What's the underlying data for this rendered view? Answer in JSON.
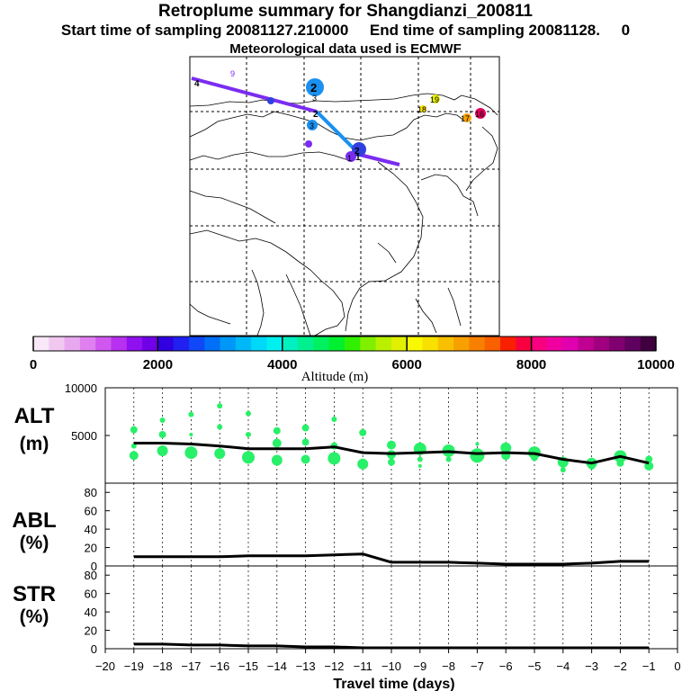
{
  "header": {
    "title": "Retroplume summary for Shangdianzi_200811",
    "subtitle": "Start time of sampling 20081127.210000     End time of sampling 20081128.     0",
    "meteo": "Meteorological data used is ECMWF"
  },
  "colorbar": {
    "title": "Altitude (m)",
    "colors": [
      "#f8e8f8",
      "#f0c8f0",
      "#e8a8f0",
      "#e080f0",
      "#d058f0",
      "#b830f0",
      "#9010f0",
      "#7000e8",
      "#3000e0",
      "#2020f0",
      "#1048f8",
      "#0070f8",
      "#0098f8",
      "#00b8f8",
      "#00d8f8",
      "#00f0f0",
      "#00f0c0",
      "#00f090",
      "#00f060",
      "#00f030",
      "#30f000",
      "#80f000",
      "#b8f000",
      "#e0f000",
      "#f8f800",
      "#f8e000",
      "#f8c000",
      "#f8a000",
      "#f88000",
      "#f86000",
      "#f82000",
      "#f80040",
      "#f80080",
      "#f000a0",
      "#e000b0",
      "#c00090",
      "#a00080",
      "#800070",
      "#600060",
      "#400040"
    ],
    "tick_labels": [
      "0",
      "2000",
      "4000",
      "6000",
      "8000",
      "10000"
    ],
    "tick_values": [
      0,
      2000,
      4000,
      6000,
      8000,
      10000
    ]
  },
  "map": {
    "trajectory_labels": [
      "4",
      "3",
      "2",
      "1"
    ],
    "cluster_labels": [
      "9",
      "18",
      "19",
      "17",
      "16",
      "2",
      "3",
      "2",
      "1"
    ]
  },
  "chart_data": [
    {
      "type": "line",
      "panel": "ALT",
      "ylabel": "ALT\n(m)",
      "ylim": [
        0,
        10000
      ],
      "yticks": [
        5000,
        10000
      ],
      "x": [
        -19,
        -18,
        -17,
        -16,
        -15,
        -14,
        -13,
        -12,
        -11,
        -10,
        -9,
        -8,
        -7,
        -6,
        -5,
        -4,
        -3,
        -2,
        -1
      ],
      "values": [
        4200,
        4200,
        4100,
        3900,
        3600,
        3600,
        3600,
        3800,
        3200,
        3100,
        3200,
        3300,
        3100,
        3200,
        3100,
        2500,
        2100,
        2800,
        2100
      ],
      "scatter_points": [
        {
          "x": -19,
          "y": 5600,
          "r": 4
        },
        {
          "x": -19,
          "y": 3900,
          "r": 3
        },
        {
          "x": -19,
          "y": 2900,
          "r": 5
        },
        {
          "x": -18,
          "y": 6600,
          "r": 3
        },
        {
          "x": -18,
          "y": 5100,
          "r": 4
        },
        {
          "x": -18,
          "y": 3400,
          "r": 6
        },
        {
          "x": -17,
          "y": 7200,
          "r": 3
        },
        {
          "x": -17,
          "y": 5100,
          "r": 2
        },
        {
          "x": -17,
          "y": 3200,
          "r": 7
        },
        {
          "x": -16,
          "y": 8100,
          "r": 3
        },
        {
          "x": -16,
          "y": 5900,
          "r": 3
        },
        {
          "x": -16,
          "y": 3100,
          "r": 6
        },
        {
          "x": -15,
          "y": 7300,
          "r": 3
        },
        {
          "x": -15,
          "y": 5100,
          "r": 3
        },
        {
          "x": -15,
          "y": 2700,
          "r": 7
        },
        {
          "x": -14,
          "y": 5500,
          "r": 4
        },
        {
          "x": -14,
          "y": 4200,
          "r": 5
        },
        {
          "x": -14,
          "y": 2400,
          "r": 6
        },
        {
          "x": -13,
          "y": 5800,
          "r": 4
        },
        {
          "x": -13,
          "y": 4300,
          "r": 4
        },
        {
          "x": -13,
          "y": 2500,
          "r": 5
        },
        {
          "x": -12,
          "y": 6700,
          "r": 3
        },
        {
          "x": -12,
          "y": 3900,
          "r": 4
        },
        {
          "x": -12,
          "y": 2600,
          "r": 7
        },
        {
          "x": -11,
          "y": 5300,
          "r": 4
        },
        {
          "x": -11,
          "y": 2000,
          "r": 6
        },
        {
          "x": -10,
          "y": 4000,
          "r": 5
        },
        {
          "x": -10,
          "y": 3000,
          "r": 5
        },
        {
          "x": -10,
          "y": 2200,
          "r": 4
        },
        {
          "x": -9,
          "y": 3600,
          "r": 7
        },
        {
          "x": -9,
          "y": 2500,
          "r": 3
        },
        {
          "x": -9,
          "y": 1800,
          "r": 2
        },
        {
          "x": -8,
          "y": 3400,
          "r": 7
        },
        {
          "x": -8,
          "y": 2500,
          "r": 3
        },
        {
          "x": -7,
          "y": 4100,
          "r": 2
        },
        {
          "x": -7,
          "y": 2900,
          "r": 8
        },
        {
          "x": -6,
          "y": 3700,
          "r": 6
        },
        {
          "x": -6,
          "y": 2900,
          "r": 5
        },
        {
          "x": -5,
          "y": 3200,
          "r": 7
        },
        {
          "x": -5,
          "y": 2700,
          "r": 4
        },
        {
          "x": -4,
          "y": 2200,
          "r": 6
        },
        {
          "x": -4,
          "y": 1400,
          "r": 3
        },
        {
          "x": -3,
          "y": 2100,
          "r": 6
        },
        {
          "x": -3,
          "y": 1800,
          "r": 4
        },
        {
          "x": -2,
          "y": 2800,
          "r": 7
        },
        {
          "x": -2,
          "y": 2100,
          "r": 4
        },
        {
          "x": -1,
          "y": 2500,
          "r": 4
        },
        {
          "x": -1,
          "y": 1800,
          "r": 5
        }
      ]
    },
    {
      "type": "line",
      "panel": "ABL",
      "ylabel": "ABL\n(%)",
      "ylim": [
        0,
        90
      ],
      "yticks": [
        0,
        20,
        40,
        60,
        80
      ],
      "x": [
        -19,
        -18,
        -17,
        -16,
        -15,
        -14,
        -13,
        -12,
        -11,
        -10,
        -9,
        -8,
        -7,
        -6,
        -5,
        -4,
        -3,
        -2,
        -1
      ],
      "values": [
        10,
        10,
        10,
        10,
        11,
        11,
        11,
        12,
        13,
        4,
        4,
        4,
        3,
        2,
        2,
        2,
        3,
        5,
        5
      ]
    },
    {
      "type": "line",
      "panel": "STR",
      "ylabel": "STR\n(%)",
      "ylim": [
        0,
        90
      ],
      "yticks": [
        0,
        20,
        40,
        60,
        80
      ],
      "x": [
        -19,
        -18,
        -17,
        -16,
        -15,
        -14,
        -13,
        -12,
        -11,
        -10,
        -9,
        -8,
        -7,
        -6,
        -5,
        -4,
        -3,
        -2,
        -1
      ],
      "values": [
        5,
        5,
        4,
        4,
        3,
        3,
        2,
        2,
        1,
        1,
        1,
        1,
        1,
        1,
        1,
        1,
        1,
        1,
        1
      ]
    }
  ],
  "xaxis": {
    "label": "Travel time (days)",
    "tick_values": [
      -20,
      -19,
      -18,
      -17,
      -16,
      -15,
      -14,
      -13,
      -12,
      -11,
      -10,
      -9,
      -8,
      -7,
      -6,
      -5,
      -4,
      -3,
      -2,
      -1,
      0
    ],
    "tick_labels": [
      "−20",
      "−19",
      "−18",
      "−17",
      "−16",
      "−15",
      "−14",
      "−13",
      "−12",
      "−11",
      "−10",
      "−9",
      "−8",
      "−7",
      "−6",
      "−5",
      "−4",
      "−3",
      "−2",
      "−1",
      "0"
    ]
  },
  "colors": {
    "scatter": "#28f068",
    "line": "#000000",
    "traj_purple": "#7a2cf0",
    "traj_blue": "#1a90f0",
    "map_line": "#000000"
  }
}
